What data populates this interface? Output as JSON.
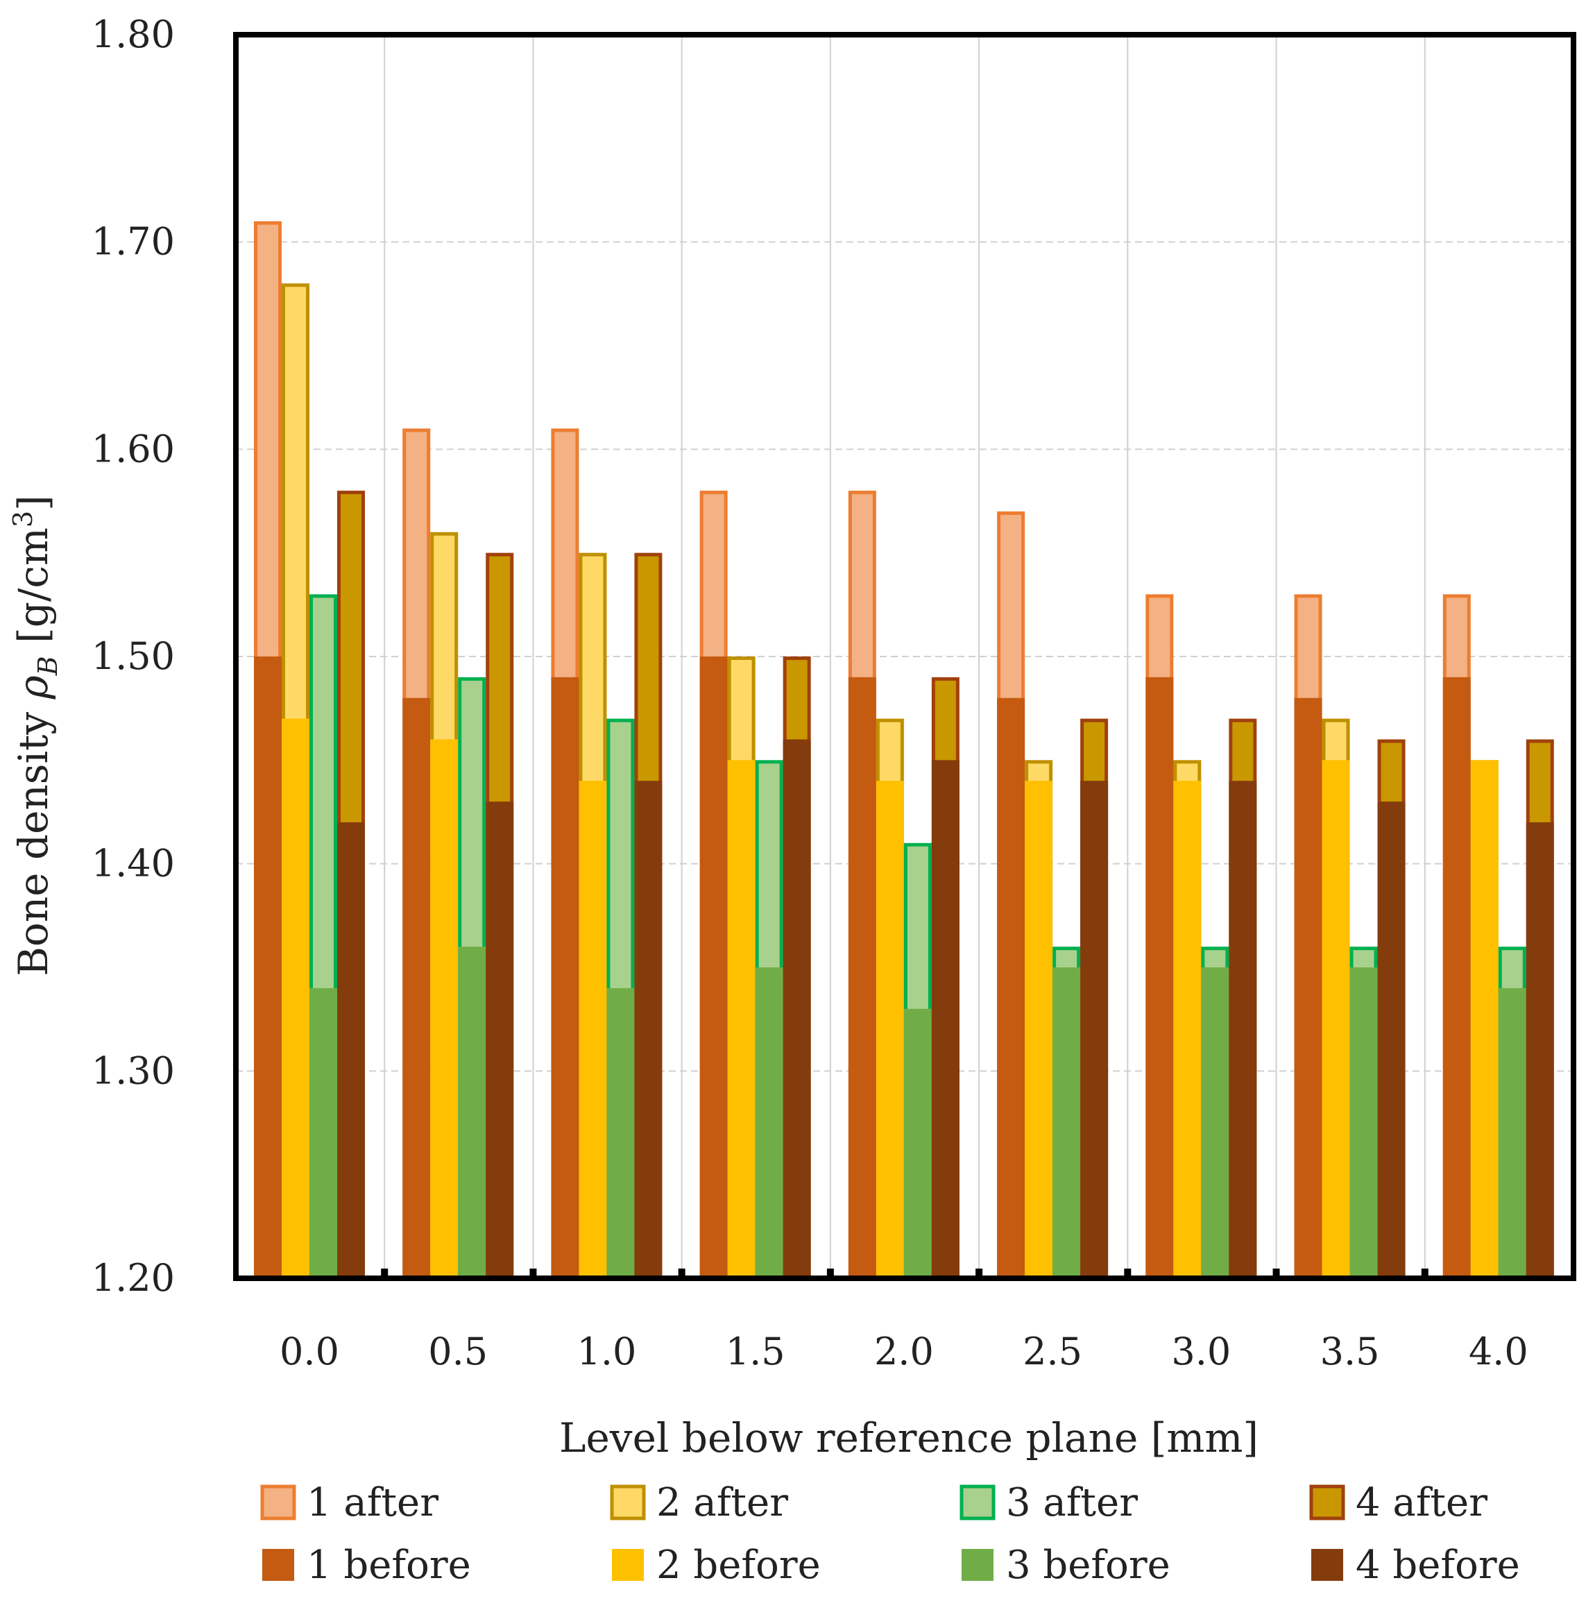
{
  "chart_data": {
    "type": "bar",
    "title": "",
    "xlabel": "Level below reference plane [mm]",
    "ylabel_prefix": "Bone density ",
    "ylabel_symbol": "ρ",
    "ylabel_subscript": "B",
    "ylabel_unit": " [g/cm",
    "ylabel_superscript": "3",
    "ylabel_close": "]",
    "ylim": [
      1.2,
      1.8
    ],
    "yticks": [
      "1.20",
      "1.30",
      "1.40",
      "1.50",
      "1.60",
      "1.70",
      "1.80"
    ],
    "categories": [
      "0.0",
      "0.5",
      "1.0",
      "1.5",
      "2.0",
      "2.5",
      "3.0",
      "3.5",
      "4.0"
    ],
    "grid": true,
    "legend_position": "bottom",
    "series": [
      {
        "name": "1 after",
        "group": 1,
        "state": "after",
        "fill": "#f4b183",
        "stroke": "#ed7d31",
        "values": [
          1.71,
          1.61,
          1.61,
          1.58,
          1.58,
          1.57,
          1.53,
          1.53,
          1.53
        ]
      },
      {
        "name": "2 after",
        "group": 2,
        "state": "after",
        "fill": "#ffd966",
        "stroke": "#bf9000",
        "values": [
          1.68,
          1.56,
          1.55,
          1.5,
          1.47,
          1.45,
          1.45,
          1.47,
          1.45
        ]
      },
      {
        "name": "3 after",
        "group": 3,
        "state": "after",
        "fill": "#a9d18e",
        "stroke": "#00b050",
        "values": [
          1.53,
          1.49,
          1.47,
          1.45,
          1.41,
          1.36,
          1.36,
          1.36,
          1.36
        ]
      },
      {
        "name": "4 after",
        "group": 4,
        "state": "after",
        "fill": "#c99700",
        "stroke": "#a0410d",
        "values": [
          1.58,
          1.55,
          1.55,
          1.5,
          1.49,
          1.47,
          1.47,
          1.46,
          1.46
        ]
      },
      {
        "name": "1 before",
        "group": 1,
        "state": "before",
        "fill": "#c55a11",
        "stroke": "#c55a11",
        "values": [
          1.5,
          1.48,
          1.49,
          1.5,
          1.49,
          1.48,
          1.49,
          1.48,
          1.49
        ]
      },
      {
        "name": "2 before",
        "group": 2,
        "state": "before",
        "fill": "#ffc000",
        "stroke": "#ffc000",
        "values": [
          1.47,
          1.46,
          1.44,
          1.45,
          1.44,
          1.44,
          1.44,
          1.45,
          1.45
        ]
      },
      {
        "name": "3 before",
        "group": 3,
        "state": "before",
        "fill": "#70ad47",
        "stroke": "#70ad47",
        "values": [
          1.34,
          1.36,
          1.34,
          1.35,
          1.33,
          1.35,
          1.35,
          1.35,
          1.34
        ]
      },
      {
        "name": "4 before",
        "group": 4,
        "state": "before",
        "fill": "#843c0c",
        "stroke": "#843c0c",
        "values": [
          1.42,
          1.43,
          1.44,
          1.46,
          1.45,
          1.44,
          1.44,
          1.43,
          1.42
        ]
      }
    ]
  }
}
